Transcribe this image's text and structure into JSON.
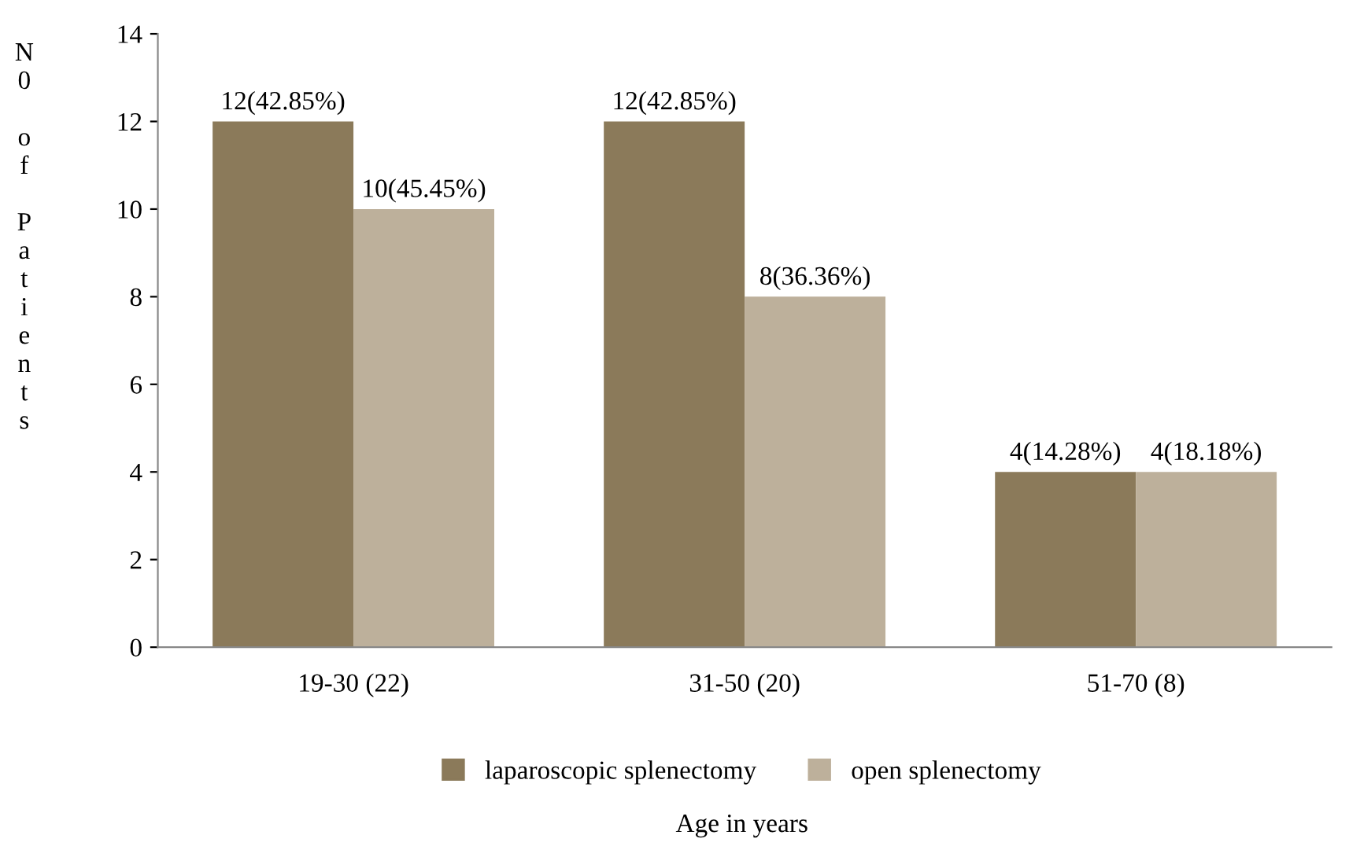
{
  "chart_data": {
    "type": "bar",
    "xlabel": "Age in years",
    "ylabel": "N0 of Patients",
    "categories": [
      "19-30 (22)",
      "31-50 (20)",
      "51-70 (8)"
    ],
    "series": [
      {
        "name": "laparoscopic splenectomy",
        "color": "#8b7a5a",
        "values": [
          12,
          12,
          4
        ],
        "value_labels": [
          "12(42.85%)",
          "12(42.85%)",
          "4(14.28%)"
        ]
      },
      {
        "name": "open splenectomy",
        "color": "#bdb09b",
        "values": [
          10,
          8,
          4
        ],
        "value_labels": [
          "10(45.45%)",
          "8(36.36%)",
          "4(18.18%)"
        ]
      }
    ],
    "ylim": [
      0,
      14
    ],
    "yticks": [
      0,
      2,
      4,
      6,
      8,
      10,
      12,
      14
    ],
    "grid": false,
    "legend": "bottom"
  }
}
